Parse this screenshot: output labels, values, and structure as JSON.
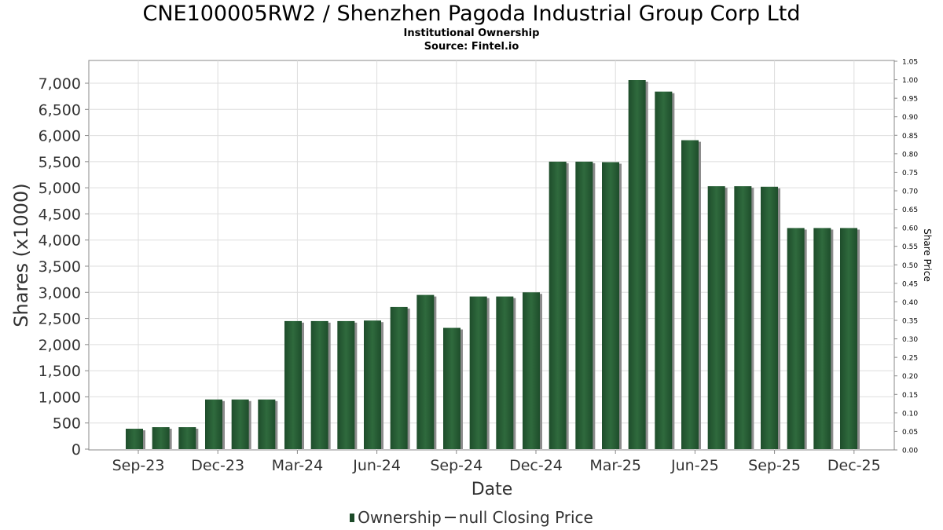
{
  "page": {
    "title": "CNE100005RW2 / Shenzhen Pagoda Industrial Group Corp Ltd",
    "subtitle": "Institutional Ownership",
    "source": "Source: Fintel.io"
  },
  "legend": {
    "ownership": "Ownership",
    "price": "null Closing Price"
  },
  "colors": {
    "bar": "#1e4d2b",
    "bar_highlight": "#2f6a3d",
    "bar_shadow": "#8c8c8c",
    "grid": "#dddddd"
  },
  "chart_data": {
    "type": "bar",
    "xlabel": "Date",
    "ylabel": "Shares (x1000)",
    "y2label": "Share Price",
    "ylim": [
      0,
      7400
    ],
    "y2lim": [
      0,
      1.05
    ],
    "grid": true,
    "legend_position": "bottom",
    "x_ticks": [
      "Sep-23",
      "Dec-23",
      "Mar-24",
      "Jun-24",
      "Sep-24",
      "Dec-24",
      "Mar-25",
      "Jun-25",
      "Sep-25",
      "Dec-25"
    ],
    "y_ticks": [
      {
        "value": 0,
        "label": "0"
      },
      {
        "value": 500,
        "label": "500"
      },
      {
        "value": 1000,
        "label": "1,000"
      },
      {
        "value": 1500,
        "label": "1,500"
      },
      {
        "value": 2000,
        "label": "2,000"
      },
      {
        "value": 2500,
        "label": "2,500"
      },
      {
        "value": 3000,
        "label": "3,000"
      },
      {
        "value": 3500,
        "label": "3,500"
      },
      {
        "value": 4000,
        "label": "4,000"
      },
      {
        "value": 4500,
        "label": "4,500"
      },
      {
        "value": 5000,
        "label": "5,000"
      },
      {
        "value": 5500,
        "label": "5,500"
      },
      {
        "value": 6000,
        "label": "6,000"
      },
      {
        "value": 6500,
        "label": "6,500"
      },
      {
        "value": 7000,
        "label": "7,000"
      }
    ],
    "y2_ticks": [
      "0.00",
      "0.05",
      "0.10",
      "0.15",
      "0.20",
      "0.25",
      "0.30",
      "0.35",
      "0.40",
      "0.45",
      "0.50",
      "0.55",
      "0.60",
      "0.65",
      "0.70",
      "0.75",
      "0.80",
      "0.85",
      "0.90",
      "0.95",
      "1.00",
      "1.05"
    ],
    "series": [
      {
        "name": "Ownership",
        "values": [
          390,
          420,
          420,
          950,
          950,
          950,
          2450,
          2450,
          2450,
          2460,
          2720,
          2950,
          2320,
          2920,
          2920,
          3000,
          5500,
          5500,
          5490,
          7060,
          6840,
          5910,
          5030,
          5030,
          5020,
          4230,
          4230,
          4230
        ]
      }
    ]
  }
}
